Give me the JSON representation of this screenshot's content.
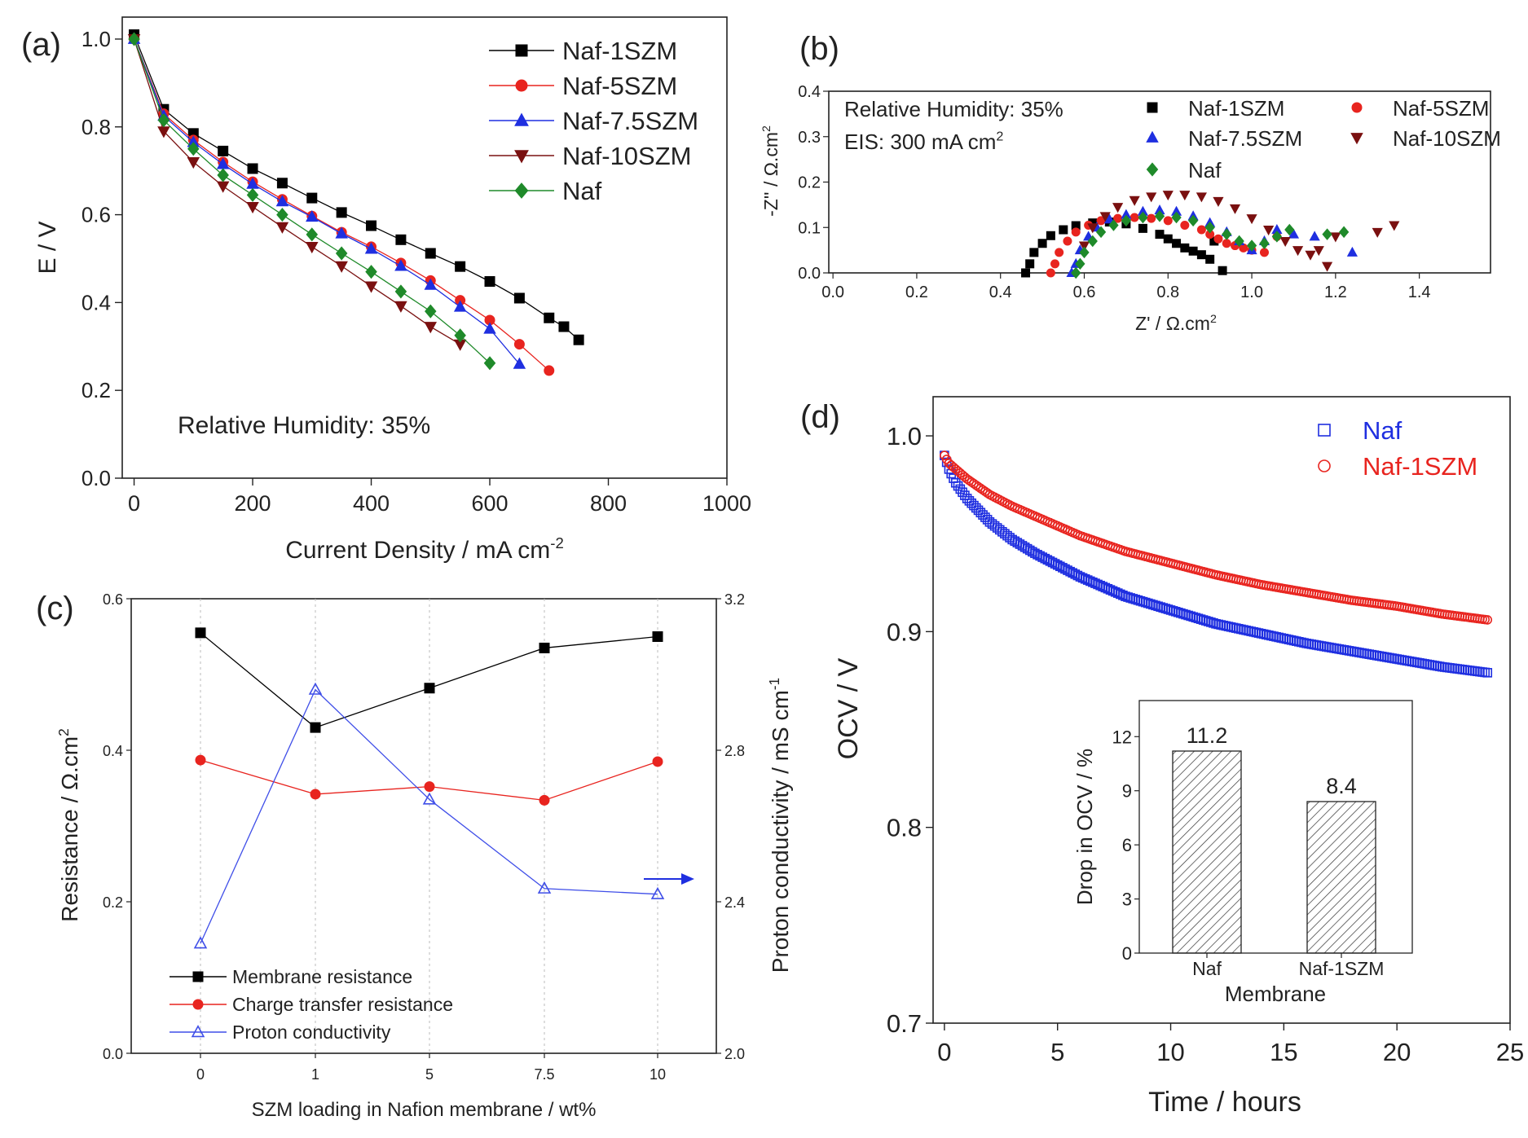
{
  "panel_labels": {
    "a": "(a)",
    "b": "(b)",
    "c": "(c)",
    "d": "(d)"
  },
  "chart_data": [
    {
      "id": "a",
      "type": "line",
      "xlabel": "Current Density / mA cm",
      "xlabel_sup": "-2",
      "ylabel": "E / V",
      "xlim": [
        0,
        1000
      ],
      "ylim": [
        0.0,
        1.05
      ],
      "xticks": [
        "0",
        "200",
        "400",
        "600",
        "800",
        "1000"
      ],
      "yticks": [
        "0.0",
        "0.2",
        "0.4",
        "0.6",
        "0.8",
        "1.0"
      ],
      "annotation": "Relative Humidity: 35%",
      "series": [
        {
          "name": "Naf-1SZM",
          "color": "#000000",
          "marker": "square",
          "x": [
            0,
            50,
            100,
            150,
            200,
            250,
            300,
            350,
            400,
            450,
            500,
            550,
            600,
            650,
            700,
            725,
            750
          ],
          "y": [
            1.01,
            0.84,
            0.785,
            0.745,
            0.705,
            0.672,
            0.638,
            0.605,
            0.575,
            0.543,
            0.512,
            0.482,
            0.448,
            0.41,
            0.365,
            0.345,
            0.315
          ]
        },
        {
          "name": "Naf-5SZM",
          "color": "#e8241f",
          "marker": "circle",
          "x": [
            0,
            50,
            100,
            150,
            200,
            250,
            300,
            350,
            400,
            450,
            500,
            550,
            600,
            650,
            700
          ],
          "y": [
            1.0,
            0.83,
            0.77,
            0.72,
            0.675,
            0.635,
            0.597,
            0.56,
            0.527,
            0.49,
            0.45,
            0.405,
            0.36,
            0.305,
            0.245
          ]
        },
        {
          "name": "Naf-7.5SZM",
          "color": "#1f2fe0",
          "marker": "triangle",
          "x": [
            0,
            50,
            100,
            150,
            200,
            250,
            300,
            350,
            400,
            450,
            500,
            550,
            600,
            650
          ],
          "y": [
            1.0,
            0.825,
            0.765,
            0.715,
            0.67,
            0.63,
            0.595,
            0.557,
            0.522,
            0.483,
            0.44,
            0.39,
            0.34,
            0.26
          ]
        },
        {
          "name": "Naf-10SZM",
          "color": "#7a1010",
          "marker": "triangle-down",
          "x": [
            0,
            50,
            100,
            150,
            200,
            250,
            300,
            350,
            400,
            450,
            500,
            550
          ],
          "y": [
            1.0,
            0.79,
            0.72,
            0.665,
            0.618,
            0.572,
            0.527,
            0.483,
            0.437,
            0.392,
            0.345,
            0.305
          ]
        },
        {
          "name": "Naf",
          "color": "#1f8a2a",
          "marker": "diamond",
          "x": [
            0,
            50,
            100,
            150,
            200,
            250,
            300,
            350,
            400,
            450,
            500,
            550,
            600
          ],
          "y": [
            1.0,
            0.815,
            0.75,
            0.69,
            0.645,
            0.6,
            0.555,
            0.512,
            0.47,
            0.425,
            0.38,
            0.325,
            0.262
          ]
        }
      ]
    },
    {
      "id": "b",
      "type": "scatter",
      "xlabel": "Z' / Ω.cm",
      "xlabel_sup": "2",
      "ylabel": "-Z'' / Ω.cm",
      "ylabel_sup": "2",
      "xlim": [
        0.0,
        1.5
      ],
      "ylim": [
        0.0,
        0.4
      ],
      "xticks": [
        "0.0",
        "0.2",
        "0.4",
        "0.6",
        "0.8",
        "1.0",
        "1.2",
        "1.4"
      ],
      "yticks": [
        "0.0",
        "0.1",
        "0.2",
        "0.3",
        "0.4"
      ],
      "annotations": [
        "Relative Humidity: 35%",
        "EIS: 300 mA cm"
      ],
      "annotation_sup": "2",
      "series": [
        {
          "name": "Naf-1SZM",
          "color": "#000000",
          "marker": "square",
          "x": [
            0.46,
            0.47,
            0.48,
            0.5,
            0.52,
            0.55,
            0.58,
            0.62,
            0.66,
            0.7,
            0.74,
            0.78,
            0.8,
            0.82,
            0.84,
            0.86,
            0.88,
            0.9,
            0.91,
            0.93
          ],
          "y": [
            0.0,
            0.02,
            0.045,
            0.065,
            0.082,
            0.095,
            0.104,
            0.11,
            0.112,
            0.108,
            0.098,
            0.085,
            0.075,
            0.065,
            0.055,
            0.048,
            0.04,
            0.03,
            0.07,
            0.005
          ]
        },
        {
          "name": "Naf-5SZM",
          "color": "#e8241f",
          "marker": "circle",
          "x": [
            0.52,
            0.53,
            0.54,
            0.56,
            0.58,
            0.61,
            0.64,
            0.68,
            0.72,
            0.76,
            0.8,
            0.84,
            0.88,
            0.9,
            0.92,
            0.94,
            0.96,
            0.98,
            1.0,
            1.03,
            1.06
          ],
          "y": [
            0.0,
            0.02,
            0.045,
            0.07,
            0.09,
            0.105,
            0.115,
            0.12,
            0.122,
            0.12,
            0.115,
            0.105,
            0.095,
            0.085,
            0.075,
            0.065,
            0.06,
            0.055,
            0.05,
            0.045,
            0.08
          ]
        },
        {
          "name": "Naf-7.5SZM",
          "color": "#1f2fe0",
          "marker": "triangle",
          "x": [
            0.57,
            0.58,
            0.59,
            0.61,
            0.63,
            0.66,
            0.7,
            0.74,
            0.78,
            0.82,
            0.86,
            0.9,
            0.94,
            0.97,
            1.0,
            1.03,
            1.06,
            1.1,
            1.15,
            1.24
          ],
          "y": [
            0.0,
            0.02,
            0.05,
            0.08,
            0.1,
            0.118,
            0.128,
            0.135,
            0.138,
            0.135,
            0.125,
            0.11,
            0.09,
            0.07,
            0.05,
            0.07,
            0.095,
            0.085,
            0.08,
            0.045
          ]
        },
        {
          "name": "Naf-10SZM",
          "color": "#7a1010",
          "marker": "triangle-down",
          "x": [
            0.6,
            0.62,
            0.65,
            0.68,
            0.72,
            0.76,
            0.8,
            0.84,
            0.88,
            0.92,
            0.96,
            1.0,
            1.04,
            1.08,
            1.11,
            1.14,
            1.16,
            1.18,
            1.2,
            1.3,
            1.34
          ],
          "y": [
            0.06,
            0.1,
            0.125,
            0.145,
            0.16,
            0.168,
            0.172,
            0.172,
            0.168,
            0.158,
            0.142,
            0.12,
            0.095,
            0.07,
            0.05,
            0.04,
            0.05,
            0.015,
            0.08,
            0.09,
            0.105
          ]
        },
        {
          "name": "Naf",
          "color": "#1f8a2a",
          "marker": "diamond",
          "x": [
            0.58,
            0.59,
            0.6,
            0.62,
            0.64,
            0.67,
            0.7,
            0.74,
            0.78,
            0.82,
            0.86,
            0.9,
            0.94,
            0.97,
            1.0,
            1.03,
            1.06,
            1.09,
            1.18,
            1.22
          ],
          "y": [
            0.0,
            0.02,
            0.045,
            0.07,
            0.09,
            0.105,
            0.115,
            0.122,
            0.125,
            0.122,
            0.115,
            0.1,
            0.085,
            0.07,
            0.06,
            0.065,
            0.08,
            0.095,
            0.085,
            0.09
          ]
        }
      ]
    },
    {
      "id": "c",
      "type": "line",
      "categories": [
        "0",
        "1",
        "5",
        "7.5",
        "10"
      ],
      "xlabel": "SZM loading in Nafion membrane / wt%",
      "ylabel": "Resistance / Ω.cm",
      "ylabel_sup": "2",
      "y2label": "Proton conductivity / mS cm",
      "y2label_sup": "-1",
      "ylim": [
        0.0,
        0.6
      ],
      "y2lim": [
        2.0,
        3.2
      ],
      "yticks": [
        "0.0",
        "0.2",
        "0.4",
        "0.6"
      ],
      "y2ticks": [
        "2.0",
        "2.4",
        "2.8",
        "3.2"
      ],
      "series": [
        {
          "name": "Membrane resistance",
          "axis": "left",
          "color": "#000000",
          "marker": "square",
          "values": [
            0.555,
            0.43,
            0.482,
            0.535,
            0.55
          ]
        },
        {
          "name": "Charge transfer resistance",
          "axis": "left",
          "color": "#e8241f",
          "marker": "circle",
          "values": [
            0.387,
            0.342,
            0.352,
            0.334,
            0.385
          ]
        },
        {
          "name": "Proton conductivity",
          "axis": "right",
          "color": "#3f4ee8",
          "marker": "open-triangle",
          "values": [
            2.29,
            2.96,
            2.67,
            2.435,
            2.42
          ]
        }
      ]
    },
    {
      "id": "d",
      "type": "scatter",
      "xlabel": "Time / hours",
      "ylabel": "OCV / V",
      "xlim": [
        -0.5,
        25
      ],
      "ylim": [
        0.7,
        1.02
      ],
      "xticks": [
        "0",
        "5",
        "10",
        "15",
        "20",
        "25"
      ],
      "yticks": [
        "0.7",
        "0.8",
        "0.9",
        "1.0"
      ],
      "series": [
        {
          "name": "Naf",
          "color": "#1f2fe0",
          "marker": "open-square",
          "x": [
            0,
            0.2,
            0.5,
            1,
            1.5,
            2,
            3,
            4,
            5,
            6,
            8,
            10,
            12,
            14,
            16,
            18,
            20,
            22,
            24
          ],
          "y": [
            0.99,
            0.983,
            0.976,
            0.968,
            0.962,
            0.956,
            0.947,
            0.94,
            0.934,
            0.928,
            0.918,
            0.911,
            0.904,
            0.899,
            0.894,
            0.89,
            0.886,
            0.882,
            0.879
          ]
        },
        {
          "name": "Naf-1SZM",
          "color": "#e8241f",
          "marker": "open-circle",
          "x": [
            0,
            0.2,
            0.5,
            1,
            1.5,
            2,
            3,
            4,
            5,
            6,
            8,
            10,
            12,
            14,
            16,
            18,
            20,
            22,
            24
          ],
          "y": [
            0.99,
            0.986,
            0.983,
            0.978,
            0.974,
            0.97,
            0.964,
            0.959,
            0.954,
            0.949,
            0.941,
            0.935,
            0.929,
            0.924,
            0.92,
            0.916,
            0.913,
            0.909,
            0.906
          ]
        }
      ],
      "inset": {
        "type": "bar",
        "xlabel": "Membrane",
        "ylabel": "Drop in OCV / %",
        "categories": [
          "Naf",
          "Naf-1SZM"
        ],
        "values": [
          11.2,
          8.4
        ],
        "labels": [
          "11.2",
          "8.4"
        ],
        "ylim": [
          0,
          14
        ],
        "yticks": [
          "0",
          "3",
          "6",
          "9",
          "12"
        ]
      }
    }
  ]
}
